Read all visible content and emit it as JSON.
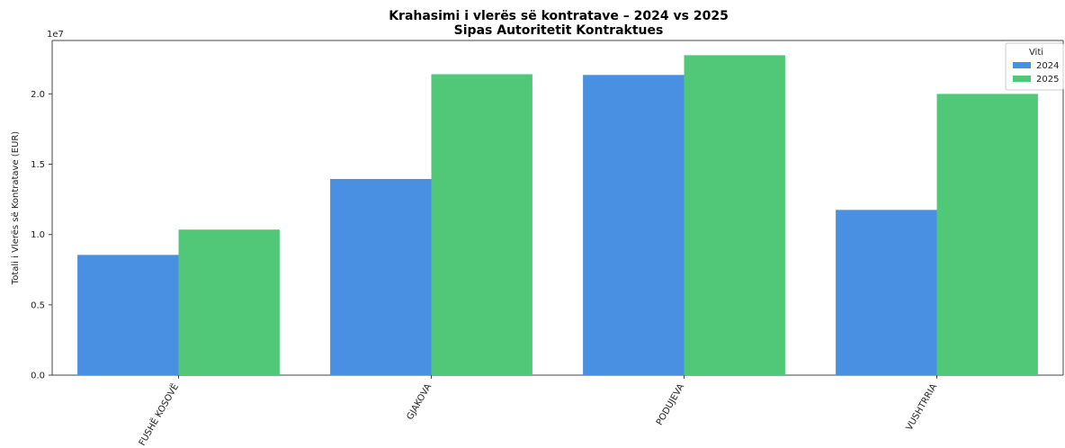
{
  "chart_data": {
    "type": "bar",
    "title": "Krahasimi i vlerës së kontratave – 2024 vs 2025",
    "subtitle": "Sipas Autoritetit Kontraktues",
    "xlabel": "",
    "ylabel": "Totali i Vlerës së Kontratave (EUR)",
    "y_offset_label": "1e7",
    "ylim": [
      0,
      23800000
    ],
    "yticks": [
      0,
      5000000,
      10000000,
      15000000,
      20000000
    ],
    "ytick_labels": [
      "0.0",
      "0.5",
      "1.0",
      "1.5",
      "2.0"
    ],
    "categories": [
      "FUSHË KOSOVË",
      "GJAKOVA",
      "PODUJEVA",
      "VUSHTRRIA"
    ],
    "series": [
      {
        "name": "2024",
        "color": "#4a90e2",
        "values": [
          8550000,
          13950000,
          21350000,
          11750000
        ]
      },
      {
        "name": "2025",
        "color": "#50c878",
        "values": [
          10350000,
          21400000,
          22750000,
          20000000
        ]
      }
    ],
    "legend": {
      "title": "Viti",
      "position": "top-right"
    },
    "grid": false
  }
}
